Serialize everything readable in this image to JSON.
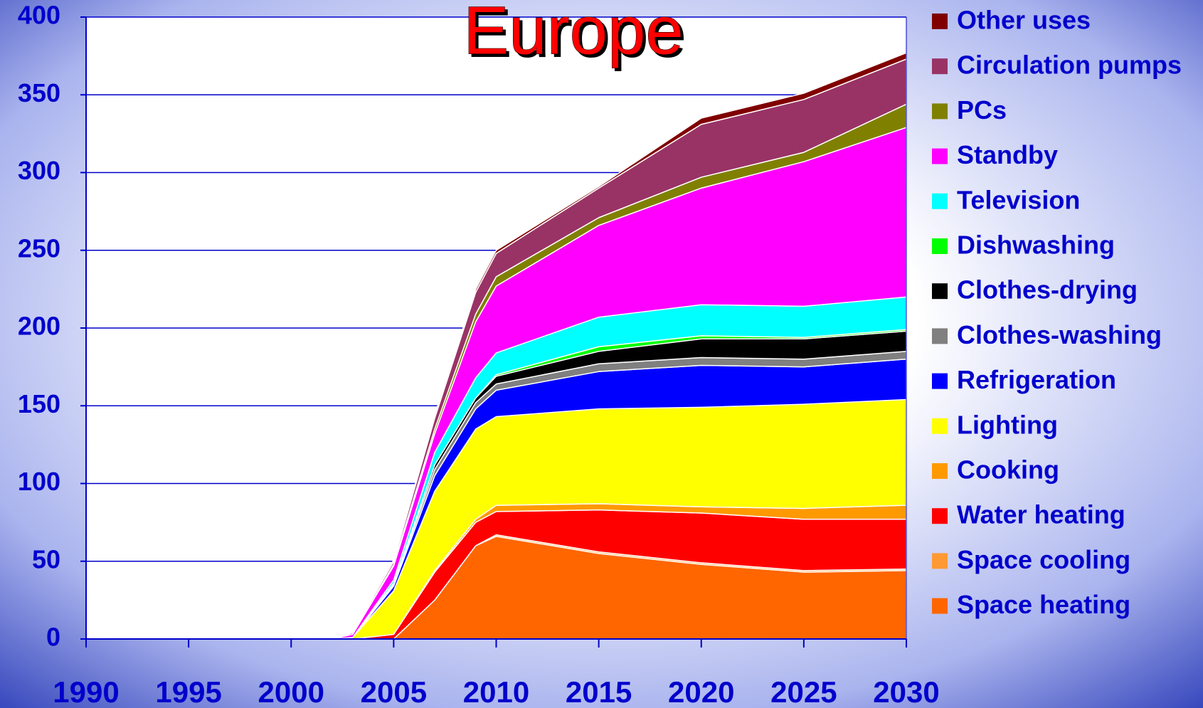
{
  "chart_data": {
    "type": "stacked_area",
    "title": "Europe",
    "x": [
      2002,
      2003,
      2005,
      2007,
      2009,
      2010,
      2015,
      2020,
      2025,
      2030
    ],
    "series": [
      {
        "name": "Space heating",
        "color": "#ff6600",
        "values": [
          0,
          0,
          0,
          25,
          60,
          66,
          55,
          48,
          43,
          44
        ]
      },
      {
        "name": "Space cooling",
        "color": "#ff9933",
        "values": [
          0,
          0,
          0,
          0,
          0,
          1,
          1,
          1,
          1,
          1
        ]
      },
      {
        "name": "Water heating",
        "color": "#ff0000",
        "values": [
          0,
          0,
          3,
          18,
          15,
          15,
          27,
          32,
          33,
          32
        ]
      },
      {
        "name": "Cooking",
        "color": "#ff9900",
        "values": [
          0,
          0,
          0,
          1,
          2,
          4,
          4,
          4,
          7,
          9
        ]
      },
      {
        "name": "Lighting",
        "color": "#ffff00",
        "values": [
          0,
          1,
          28,
          51,
          58,
          57,
          61,
          64,
          67,
          68
        ]
      },
      {
        "name": "Refrigeration",
        "color": "#0000ff",
        "values": [
          0,
          0,
          3,
          10,
          13,
          17,
          24,
          27,
          24,
          26
        ]
      },
      {
        "name": "Clothes-washing",
        "color": "#808080",
        "values": [
          0,
          0,
          1,
          4,
          4,
          4,
          5,
          5,
          5,
          5
        ]
      },
      {
        "name": "Clothes-drying",
        "color": "#000000",
        "values": [
          0,
          0,
          1,
          3,
          3,
          5,
          8,
          12,
          13,
          13
        ]
      },
      {
        "name": "Dishwashing",
        "color": "#00ff00",
        "values": [
          0,
          0,
          0,
          0,
          0,
          1,
          3,
          2,
          1,
          1
        ]
      },
      {
        "name": "Television",
        "color": "#00ffff",
        "values": [
          0,
          0,
          2,
          8,
          13,
          14,
          19,
          20,
          20,
          21
        ]
      },
      {
        "name": "Standby",
        "color": "#ff00ff",
        "values": [
          0,
          2,
          9,
          12,
          36,
          43,
          59,
          75,
          93,
          109
        ]
      },
      {
        "name": "PCs",
        "color": "#808000",
        "values": [
          0,
          0,
          1,
          3,
          5,
          6,
          5,
          7,
          6,
          15
        ]
      },
      {
        "name": "Circulation pumps",
        "color": "#993366",
        "values": [
          0,
          1,
          2,
          7,
          14,
          15,
          19,
          34,
          34,
          29
        ]
      },
      {
        "name": "Other uses",
        "color": "#800000",
        "values": [
          0,
          0,
          1,
          2,
          2,
          2,
          1,
          4,
          4,
          4
        ]
      }
    ],
    "xlim": [
      1990,
      2030
    ],
    "xticks": [
      1990,
      1995,
      2000,
      2005,
      2010,
      2015,
      2020,
      2025,
      2030
    ],
    "ylim": [
      0,
      400
    ],
    "yticks": [
      0,
      50,
      100,
      150,
      200,
      250,
      300,
      350,
      400
    ],
    "grid": true,
    "legend": "right"
  }
}
